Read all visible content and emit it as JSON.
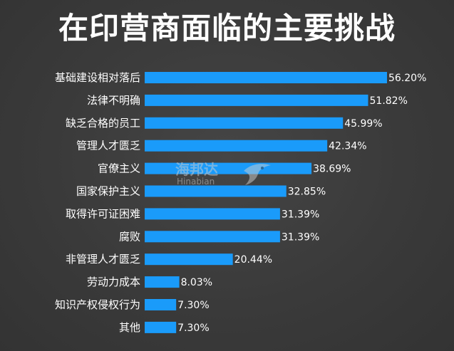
{
  "chart_data": {
    "type": "bar",
    "orientation": "horizontal",
    "title": "在印营商面临的主要挑战",
    "categories": [
      "基础建设相对落后",
      "法律不明确",
      "缺乏合格的员工",
      "管理人才匮乏",
      "官僚主义",
      "国家保护主义",
      "取得许可证困难",
      "腐败",
      "非管理人才匮乏",
      "劳动力成本",
      "知识产权侵权行为",
      "其他"
    ],
    "values": [
      56.2,
      51.82,
      45.99,
      42.34,
      38.69,
      32.85,
      31.39,
      31.39,
      20.44,
      8.03,
      7.3,
      7.3
    ],
    "value_labels": [
      "56.20%",
      "51.82%",
      "45.99%",
      "42.34%",
      "38.69%",
      "32.85%",
      "31.39%",
      "31.39%",
      "20.44%",
      "8.03%",
      "7.30%",
      "7.30%"
    ],
    "xlim": [
      0,
      56.2
    ],
    "grid": false,
    "bar_color": "#1a9bfa"
  },
  "watermark": {
    "text_cn": "海邦达",
    "text_en": "Hinabian"
  }
}
